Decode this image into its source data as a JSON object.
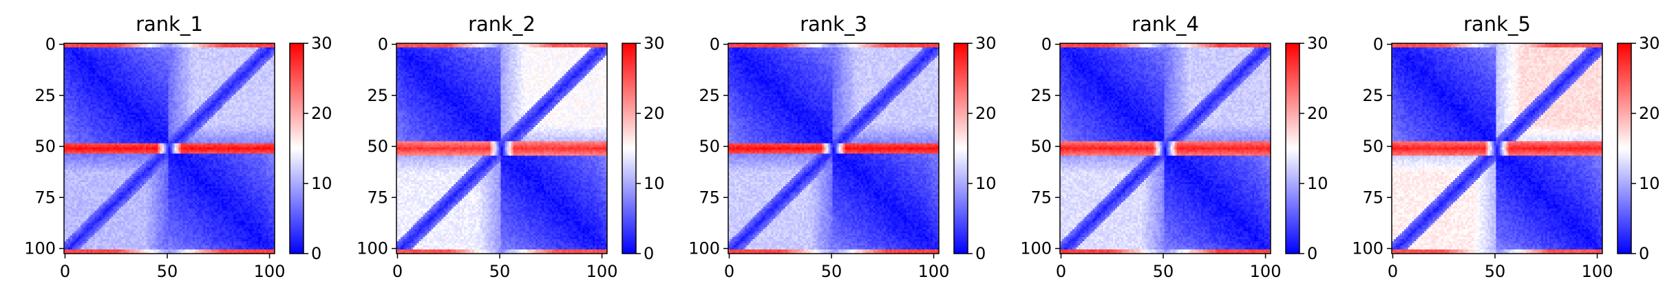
{
  "colors": {
    "low": "#0000ff",
    "mid": "#ffffff",
    "high": "#ff0000"
  },
  "chart_data": [
    {
      "type": "heatmap",
      "title": "rank_1",
      "xlim": [
        0,
        103
      ],
      "ylim": [
        103,
        0
      ],
      "x_ticks": [
        0,
        50,
        100
      ],
      "y_ticks": [
        0,
        25,
        50,
        75,
        100
      ],
      "colorbar": {
        "range": [
          0,
          30
        ],
        "ticks": [
          0,
          10,
          20,
          30
        ],
        "colormap": "bwr"
      },
      "matrix_size": 103,
      "pattern": {
        "hot_row_center": 51,
        "hot_row_halfwidth": 2,
        "hot_row_value": 29,
        "rim_value": 26,
        "block_level_top_right": 12,
        "block_level_bottom_left": 11
      }
    },
    {
      "type": "heatmap",
      "title": "rank_2",
      "xlim": [
        0,
        103
      ],
      "ylim": [
        103,
        0
      ],
      "x_ticks": [
        0,
        50,
        100
      ],
      "y_ticks": [
        0,
        25,
        50,
        75,
        100
      ],
      "colorbar": {
        "range": [
          0,
          30
        ],
        "ticks": [
          0,
          10,
          20,
          30
        ],
        "colormap": "bwr"
      },
      "matrix_size": 103,
      "pattern": {
        "hot_row_center": 51,
        "hot_row_halfwidth": 3,
        "hot_row_value": 27,
        "rim_value": 25,
        "block_level_top_right": 15,
        "block_level_bottom_left": 14
      }
    },
    {
      "type": "heatmap",
      "title": "rank_3",
      "xlim": [
        0,
        103
      ],
      "ylim": [
        103,
        0
      ],
      "x_ticks": [
        0,
        50,
        100
      ],
      "y_ticks": [
        0,
        25,
        50,
        75,
        100
      ],
      "colorbar": {
        "range": [
          0,
          30
        ],
        "ticks": [
          0,
          10,
          20,
          30
        ],
        "colormap": "bwr"
      },
      "matrix_size": 103,
      "pattern": {
        "hot_row_center": 51,
        "hot_row_halfwidth": 2,
        "hot_row_value": 29,
        "rim_value": 26,
        "block_level_top_right": 12,
        "block_level_bottom_left": 12
      }
    },
    {
      "type": "heatmap",
      "title": "rank_4",
      "xlim": [
        0,
        103
      ],
      "ylim": [
        103,
        0
      ],
      "x_ticks": [
        0,
        50,
        100
      ],
      "y_ticks": [
        0,
        25,
        50,
        75,
        100
      ],
      "colorbar": {
        "range": [
          0,
          30
        ],
        "ticks": [
          0,
          10,
          20,
          30
        ],
        "colormap": "bwr"
      },
      "matrix_size": 103,
      "pattern": {
        "hot_row_center": 51,
        "hot_row_halfwidth": 3,
        "hot_row_value": 28,
        "rim_value": 26,
        "block_level_top_right": 12,
        "block_level_bottom_left": 13
      }
    },
    {
      "type": "heatmap",
      "title": "rank_5",
      "xlim": [
        0,
        103
      ],
      "ylim": [
        103,
        0
      ],
      "x_ticks": [
        0,
        50,
        100
      ],
      "y_ticks": [
        0,
        25,
        50,
        75,
        100
      ],
      "colorbar": {
        "range": [
          0,
          30
        ],
        "ticks": [
          0,
          10,
          20,
          30
        ],
        "colormap": "bwr"
      },
      "matrix_size": 103,
      "pattern": {
        "hot_row_center": 51,
        "hot_row_halfwidth": 3,
        "hot_row_value": 28,
        "rim_value": 25,
        "block_level_top_right": 17,
        "block_level_bottom_left": 16
      }
    }
  ]
}
